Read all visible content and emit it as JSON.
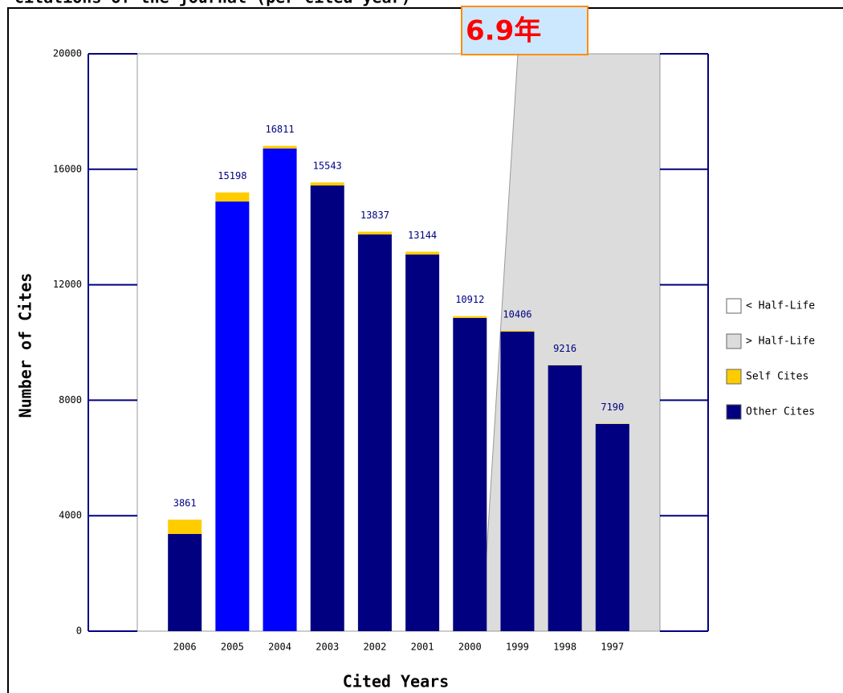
{
  "chart_data": {
    "type": "stacked_bar",
    "title": "citations of the journal (per cited year)",
    "annotation": "6.9年",
    "xlabel": "Cited Years",
    "ylabel": "Number of Cites",
    "categories": [
      "2006",
      "2005",
      "2004",
      "2003",
      "2002",
      "2001",
      "2000",
      "1999",
      "1998",
      "1997"
    ],
    "series": [
      {
        "name": "Other Cites",
        "color": "#000080",
        "colors": [
          "#000080",
          "#0000ff",
          "#0000ff",
          "#000080",
          "#000080",
          "#000080",
          "#000080",
          "#000080",
          "#000080",
          "#000080"
        ],
        "values": [
          3366,
          14882,
          16718,
          15438,
          13741,
          13046,
          10848,
          10375,
          9207,
          7177
        ]
      },
      {
        "name": "Self Cites",
        "color": "#ffcc00",
        "values": [
          495,
          316,
          93,
          105,
          96,
          98,
          64,
          31,
          9,
          13
        ]
      }
    ],
    "totals": [
      3861,
      15198,
      16811,
      15543,
      13837,
      13144,
      10912,
      10406,
      9216,
      7190
    ],
    "half_life_legend": [
      {
        "name": "< Half-Life",
        "color": "#ffffff"
      },
      {
        "name": "> Half-Life",
        "color": "#dcdcdc"
      }
    ],
    "ylim": [
      0,
      20000
    ],
    "yticks": [
      0,
      4000,
      8000,
      12000,
      16000,
      20000
    ]
  }
}
